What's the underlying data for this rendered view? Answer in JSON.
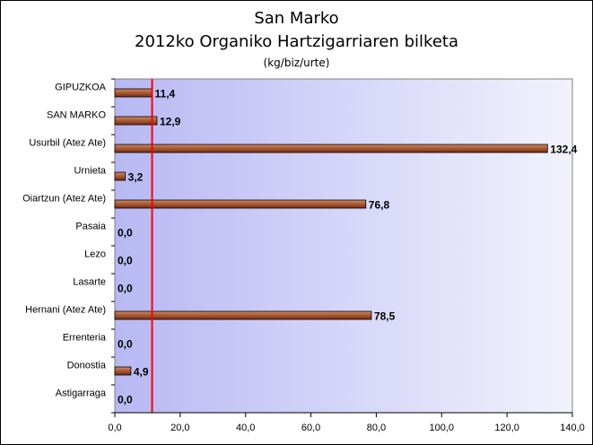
{
  "chart_data": {
    "type": "bar",
    "orientation": "horizontal",
    "title": "San Marko",
    "subtitle": "2012ko Organiko Hartzigarriaren bilketa",
    "units": "(kg/biz/urte)",
    "categories": [
      "GIPUZKOA",
      "SAN MARKO",
      "Usurbil (Atez Ate)",
      "Urnieta",
      "Oiartzun (Atez Ate)",
      "Pasaia",
      "Lezo",
      "Lasarte",
      "Hernani (Atez Ate)",
      "Errenteria",
      "Donostia",
      "Astigarraga"
    ],
    "values": [
      11.4,
      12.9,
      132.4,
      3.2,
      76.8,
      0.0,
      0.0,
      0.0,
      78.5,
      0.0,
      4.9,
      0.0
    ],
    "value_labels": [
      "11,4",
      "12,9",
      "132,4",
      "3,2",
      "76,8",
      "0,0",
      "0,0",
      "0,0",
      "78,5",
      "0,0",
      "4,9",
      "0,0"
    ],
    "xlim": [
      0,
      140
    ],
    "x_ticks": [
      0,
      20,
      40,
      60,
      80,
      100,
      120,
      140
    ],
    "x_tick_labels": [
      "0,0",
      "20,0",
      "40,0",
      "60,0",
      "80,0",
      "100,0",
      "120,0",
      "140,0"
    ],
    "reference_line": 11.4,
    "grid": false,
    "colors": {
      "bar_light": "#d08a5e",
      "bar_dark": "#7a2a10",
      "plot_bg_left": "#b8b8f4",
      "plot_bg_right": "#f2f2fc",
      "reference_line": "#ff0000"
    }
  }
}
